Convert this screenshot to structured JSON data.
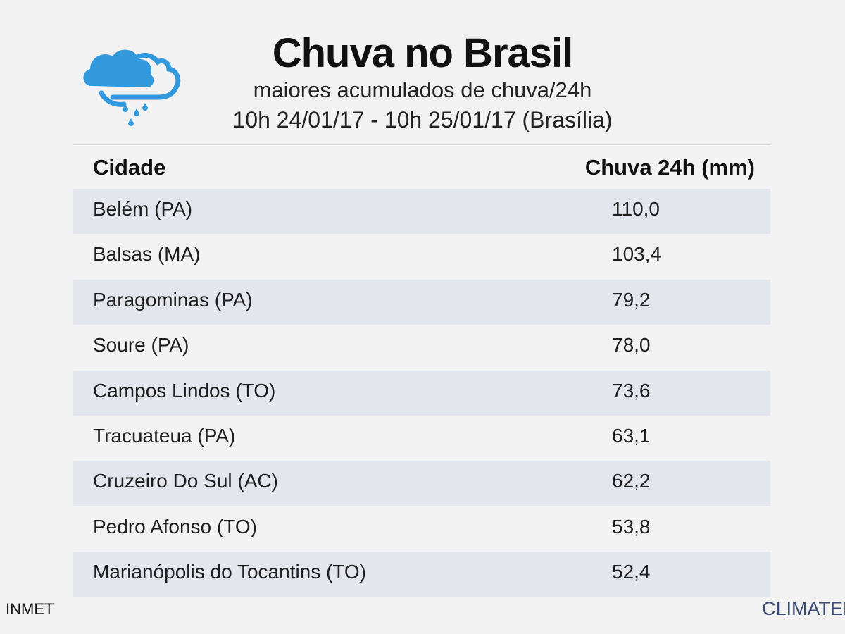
{
  "header": {
    "icon": "rain-cloud-icon",
    "title": "Chuva no Brasil",
    "subtitle": "maiores acumulados de chuva/24h",
    "period": "10h 24/01/17 - 10h 25/01/17 (Brasília)"
  },
  "table": {
    "columns": [
      "Cidade",
      "Chuva 24h (mm)"
    ],
    "rows": [
      {
        "city": "Belém (PA)",
        "rain": "110,0"
      },
      {
        "city": "Balsas (MA)",
        "rain": "103,4"
      },
      {
        "city": "Paragominas (PA)",
        "rain": "79,2"
      },
      {
        "city": "Soure (PA)",
        "rain": "78,0"
      },
      {
        "city": "Campos Lindos (TO)",
        "rain": "73,6"
      },
      {
        "city": "Tracuateua (PA)",
        "rain": "63,1"
      },
      {
        "city": "Cruzeiro Do Sul (AC)",
        "rain": "62,2"
      },
      {
        "city": "Pedro Afonso (TO)",
        "rain": "53,8"
      },
      {
        "city": "Marianópolis do Tocantins (TO)",
        "rain": "52,4"
      }
    ]
  },
  "footer": {
    "source": "INMET",
    "brand": "CLIMATEMPO"
  },
  "colors": {
    "background": "#f2f2f3",
    "row_shade": "#e4e6ee",
    "icon_blue": "#3399dd",
    "brand": "#3a4a73"
  }
}
